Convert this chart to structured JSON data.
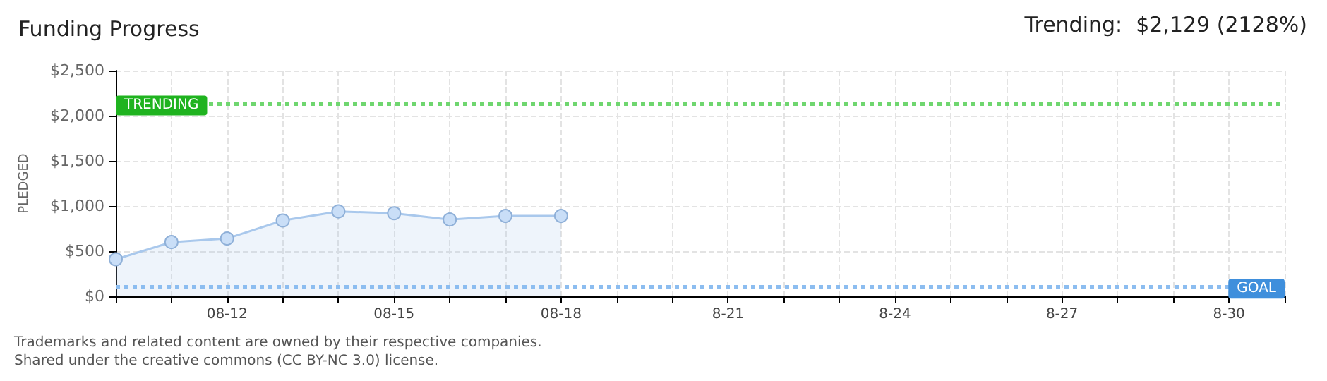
{
  "chart_data": {
    "type": "area",
    "title": "Funding Progress",
    "ylabel": "PLEDGED",
    "annotations": [
      "Trending:  $2,129 (2128%)",
      "Trademarks and related content are owned by their respective companies.",
      "Shared under the creative commons (CC BY-NC 3.0) license."
    ],
    "categories": [
      null,
      null,
      "08-12",
      null,
      null,
      "08-15",
      null,
      null,
      "08-18",
      null,
      null,
      "8-21",
      null,
      null,
      "8-24",
      null,
      null,
      "8-27",
      null,
      null,
      "8-30",
      null
    ],
    "series": [
      {
        "color": "#a9c8ec",
        "values": [
          410,
          600,
          640,
          840,
          940,
          920,
          850,
          890,
          890,
          null,
          null,
          null,
          null,
          null,
          null,
          null,
          null,
          null,
          null,
          null,
          null,
          null
        ]
      }
    ],
    "ylim": [
      0,
      2500
    ],
    "yticks": [
      {
        "value": 0,
        "label": "$0"
      },
      {
        "value": 500,
        "label": "$500"
      },
      {
        "value": 1000,
        "label": "$1,000"
      },
      {
        "value": 1500,
        "label": "$1,500"
      },
      {
        "value": 2000,
        "label": "$2,000"
      },
      {
        "value": 2500,
        "label": "$2,500"
      }
    ],
    "ref_lines": [
      {
        "axis": "y",
        "value": 2129,
        "label": "TRENDING",
        "color": "#6fd66f",
        "line_style": "dotted"
      },
      {
        "axis": "y",
        "value": 100,
        "label": "GOAL",
        "color": "#8cbdf0",
        "line_style": "dotted"
      }
    ],
    "grid": true,
    "marker": "circle",
    "line_style": "solid"
  }
}
